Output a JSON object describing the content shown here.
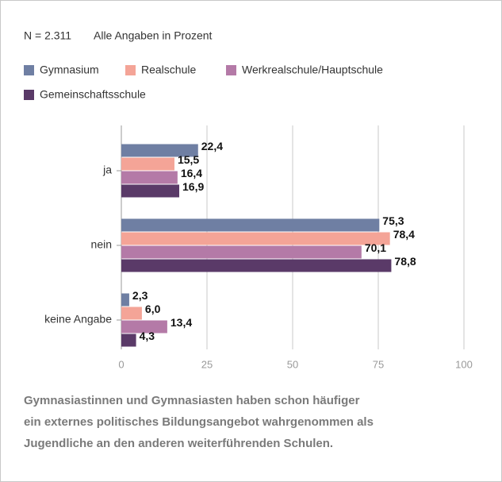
{
  "chart_data": {
    "type": "barh",
    "notes": [
      "N = 2.311",
      "Alle Angaben in Prozent"
    ],
    "categories": [
      "ja",
      "nein",
      "keine Angabe"
    ],
    "series": [
      {
        "name": "Gymnasium",
        "color": "#6f7fa3",
        "values": [
          22.4,
          75.3,
          2.3
        ],
        "value_labels": [
          "22,4",
          "75,3",
          "2,3"
        ]
      },
      {
        "name": "Realschule",
        "color": "#f4a497",
        "values": [
          15.5,
          78.4,
          6.0
        ],
        "value_labels": [
          "15,5",
          "78,4",
          "6,0"
        ]
      },
      {
        "name": "Werkrealschule/Hauptschule",
        "color": "#b47aa7",
        "values": [
          16.4,
          70.1,
          13.4
        ],
        "value_labels": [
          "16,4",
          "70,1",
          "13,4"
        ]
      },
      {
        "name": "Gemeinschaftsschule",
        "color": "#5a3a68",
        "values": [
          16.9,
          78.8,
          4.3
        ],
        "value_labels": [
          "16,9",
          "78,8",
          "4,3"
        ]
      }
    ],
    "xlim": [
      0,
      100
    ],
    "xticks": [
      0,
      25,
      50,
      75,
      100
    ],
    "grid": true,
    "caption": [
      "Gymnasiastinnen und Gymnasiasten haben schon häufiger",
      "ein externes politisches Bildungsangebot wahrgenommen als",
      "Jugendliche an den anderen weiterführenden Schulen."
    ]
  }
}
